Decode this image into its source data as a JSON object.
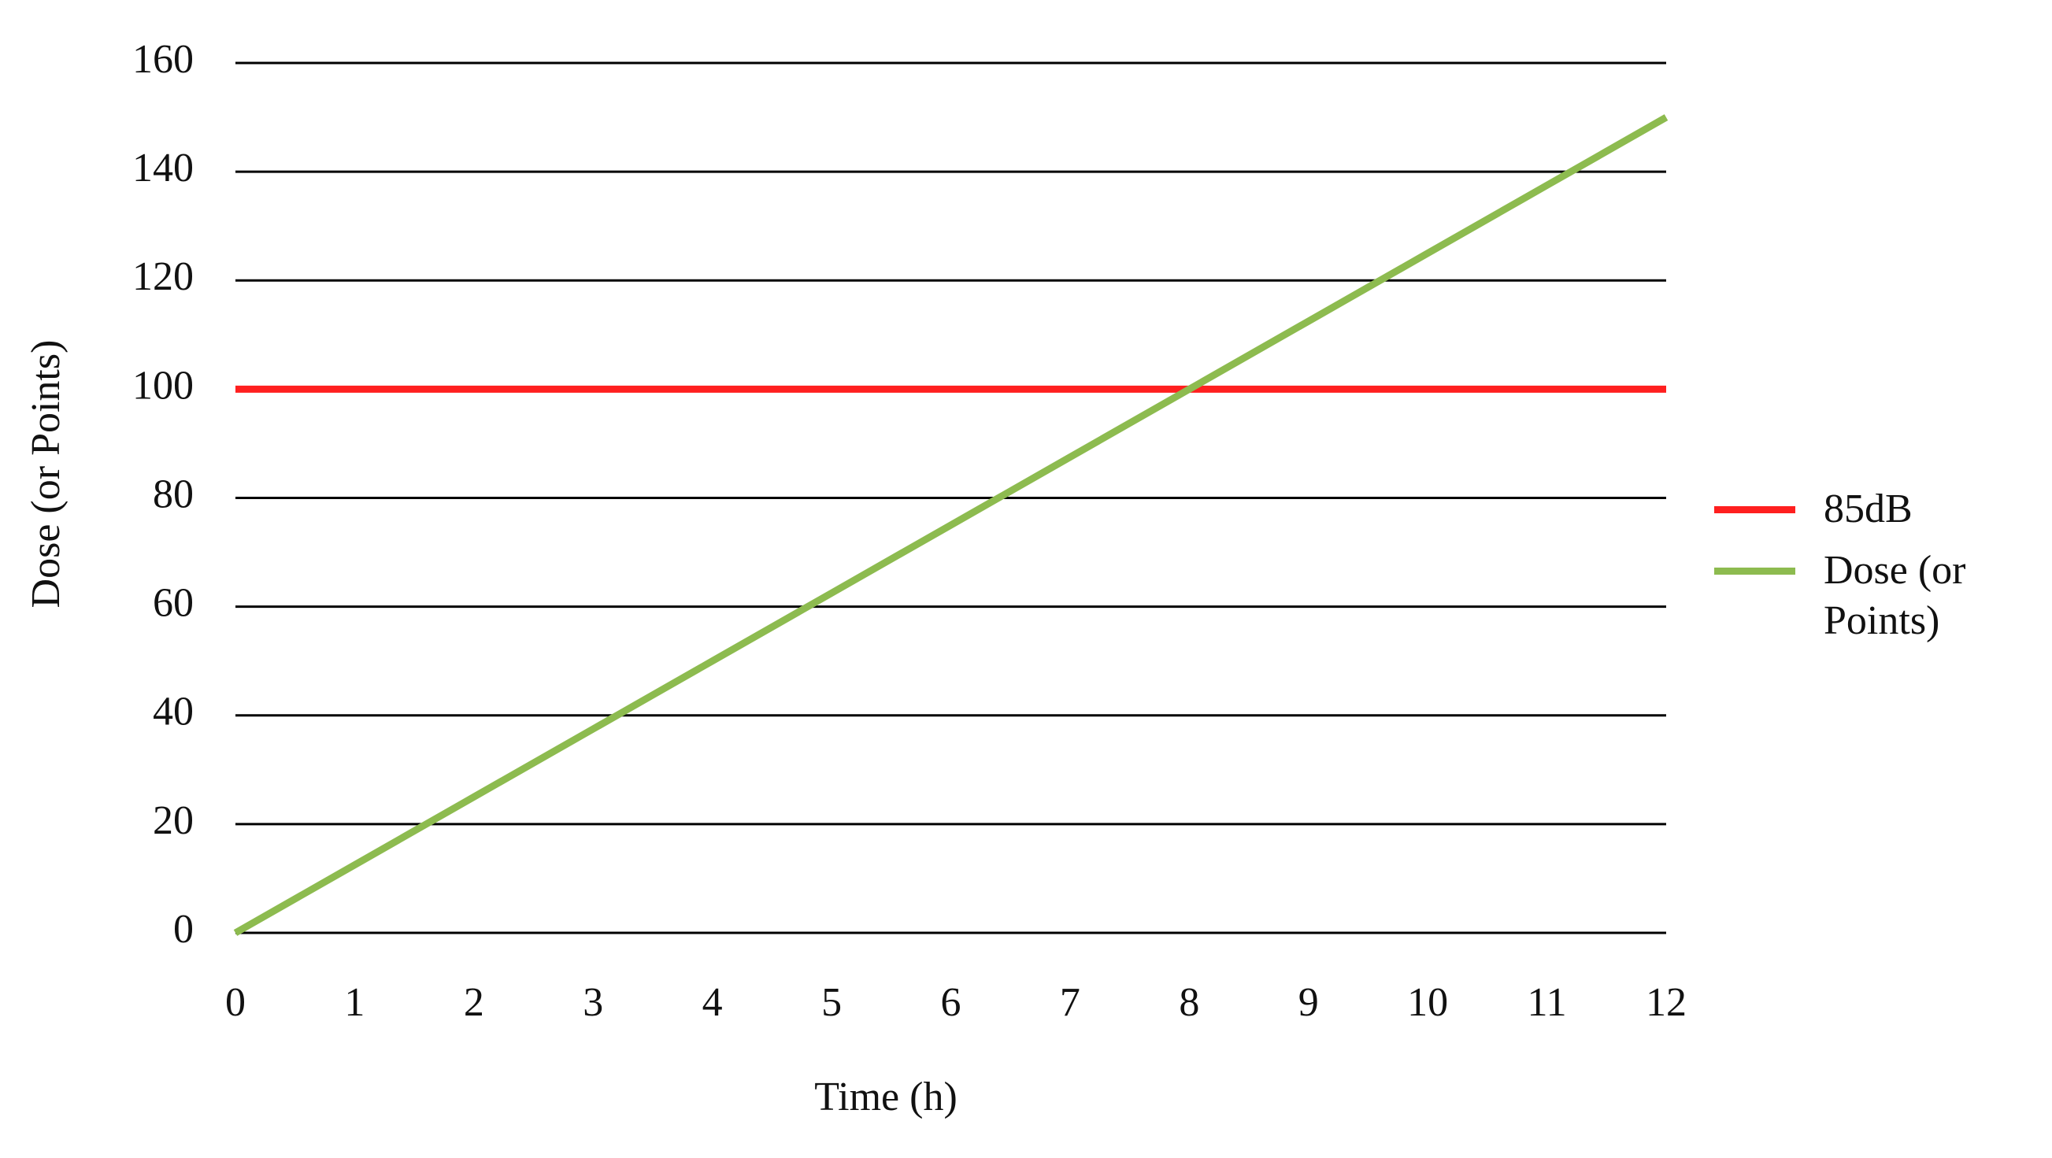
{
  "chart_data": {
    "type": "line",
    "x_label": "Time (h)",
    "y_label": "Dose (or Points)",
    "x": [
      0,
      1,
      2,
      3,
      4,
      5,
      6,
      7,
      8,
      9,
      10,
      11,
      12
    ],
    "series": [
      {
        "name": "85dB",
        "color": "#ff1f1f",
        "values": [
          100,
          100,
          100,
          100,
          100,
          100,
          100,
          100,
          100,
          100,
          100,
          100,
          100
        ]
      },
      {
        "name": "Dose (or Points)",
        "color": "#8dbb4f",
        "values": [
          0,
          12.5,
          25,
          37.5,
          50,
          62.5,
          75,
          87.5,
          100,
          112.5,
          125,
          137.5,
          150
        ]
      }
    ],
    "xlim": [
      0,
      12
    ],
    "xticks": [
      0,
      1,
      2,
      3,
      4,
      5,
      6,
      7,
      8,
      9,
      10,
      11,
      12
    ],
    "ylim": [
      0,
      160
    ],
    "yticks": [
      0,
      20,
      40,
      60,
      80,
      100,
      120,
      140,
      160
    ],
    "grid": true,
    "legend": "right"
  }
}
